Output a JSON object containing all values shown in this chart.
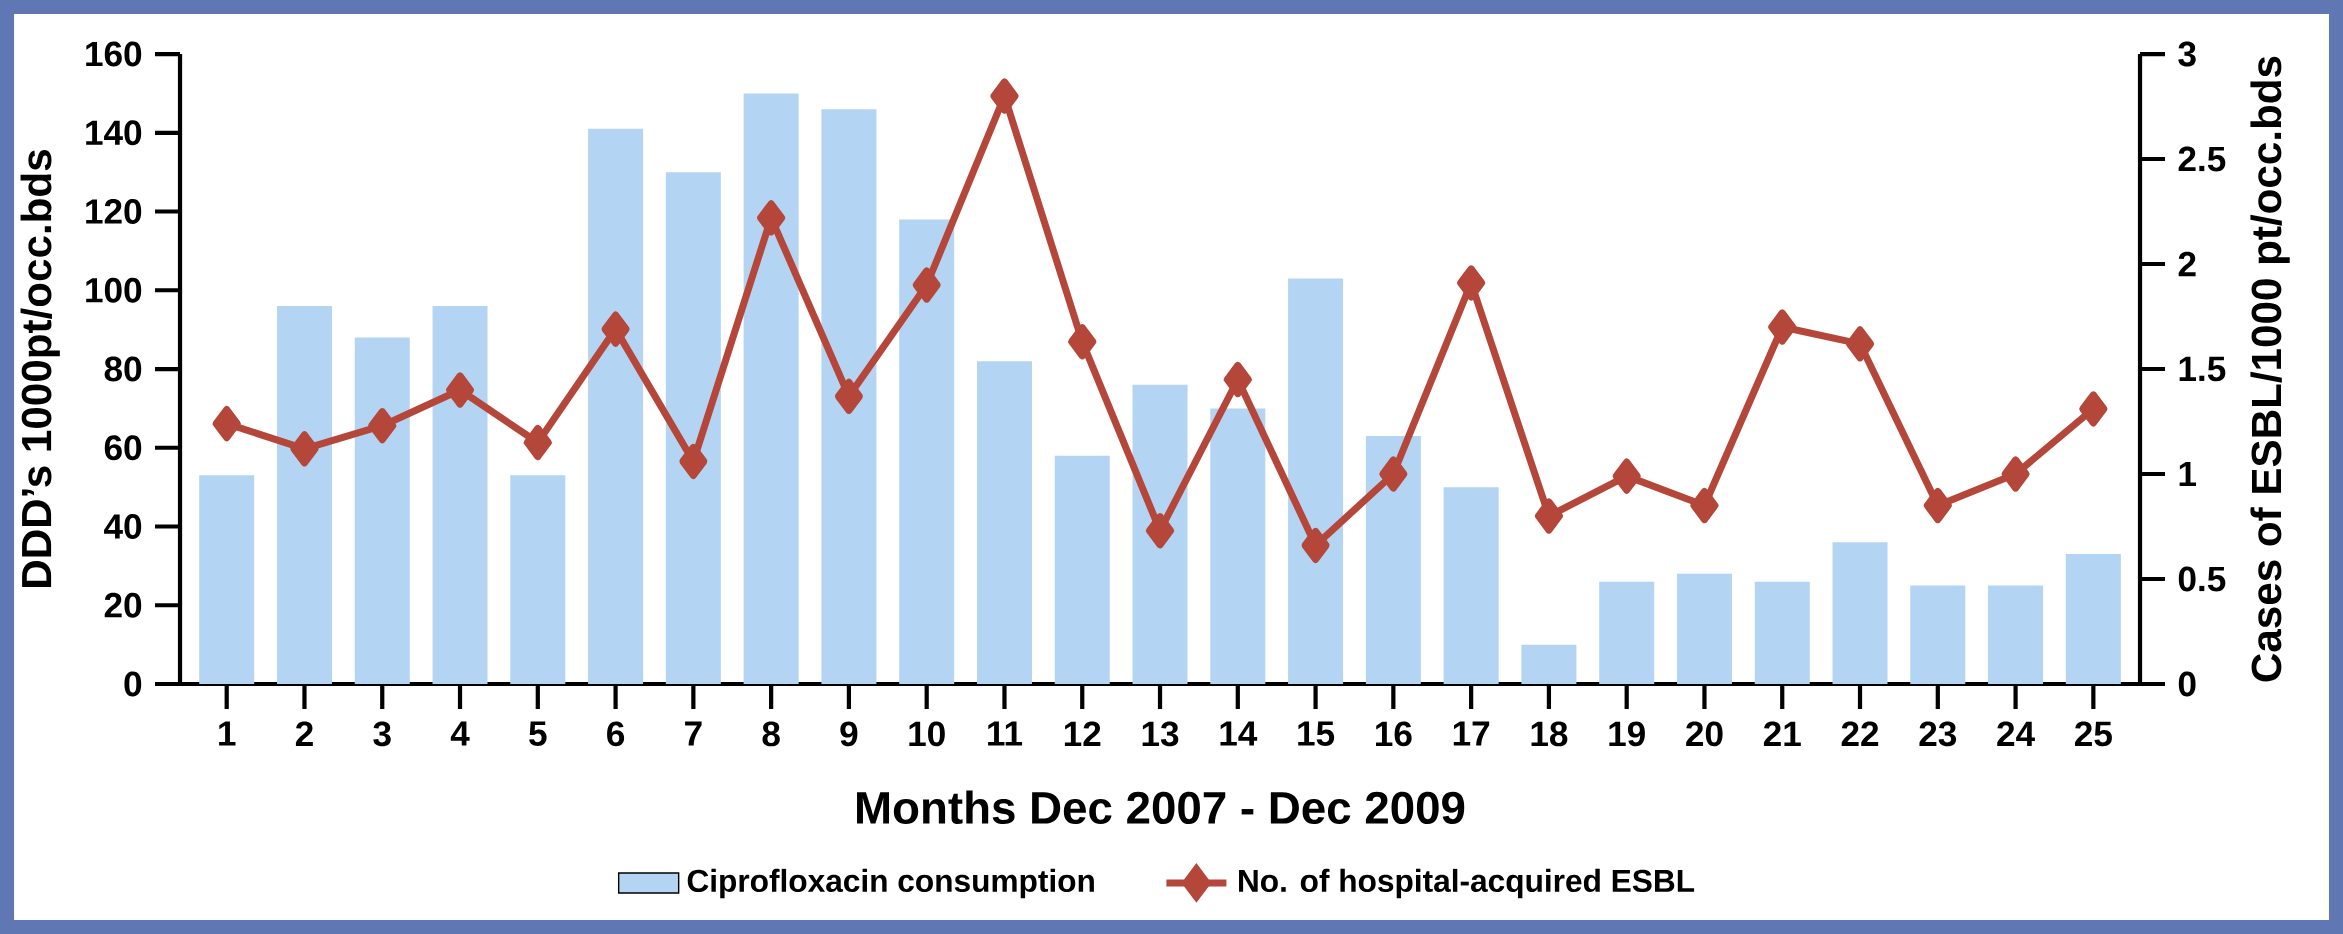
{
  "chart_data": {
    "type": "bar",
    "xlabel": "Months Dec 2007 - Dec 2009",
    "ylabel": "DDD’s 1000pt/occ.bds",
    "y2label": "Cases of ESBL/1000 pt/occ.bds",
    "categories": [
      "1",
      "2",
      "3",
      "4",
      "5",
      "6",
      "7",
      "8",
      "9",
      "10",
      "11",
      "12",
      "13",
      "14",
      "15",
      "16",
      "17",
      "18",
      "19",
      "20",
      "21",
      "22",
      "23",
      "24",
      "25"
    ],
    "series": [
      {
        "name": "Ciprofloxacin consumption",
        "color": "#b3d4f2",
        "values": [
          53,
          96,
          88,
          96,
          53,
          141,
          130,
          150,
          146,
          118,
          82,
          58,
          76,
          70,
          103,
          63,
          50,
          10,
          26,
          28,
          26,
          36,
          25,
          25,
          33
        ]
      },
      {
        "name": "No. of hospital-acquired ESBL",
        "type": "line",
        "axis": "y2",
        "color": "#b5473a",
        "values": [
          1.24,
          1.12,
          1.23,
          1.4,
          1.15,
          1.69,
          1.06,
          2.22,
          1.37,
          1.9,
          2.8,
          1.63,
          0.73,
          1.45,
          0.66,
          1.0,
          1.91,
          0.8,
          0.99,
          0.85,
          1.7,
          1.62,
          0.85,
          1.0,
          1.31
        ]
      }
    ],
    "ylim": [
      0,
      160
    ],
    "yticks": [
      0,
      20,
      40,
      60,
      80,
      100,
      120,
      140,
      160
    ],
    "y2lim": [
      0,
      3
    ],
    "y2ticks": [
      0,
      0.5,
      1,
      1.5,
      2,
      2.5,
      3
    ],
    "marker": "diamond",
    "legend": "bottom"
  }
}
